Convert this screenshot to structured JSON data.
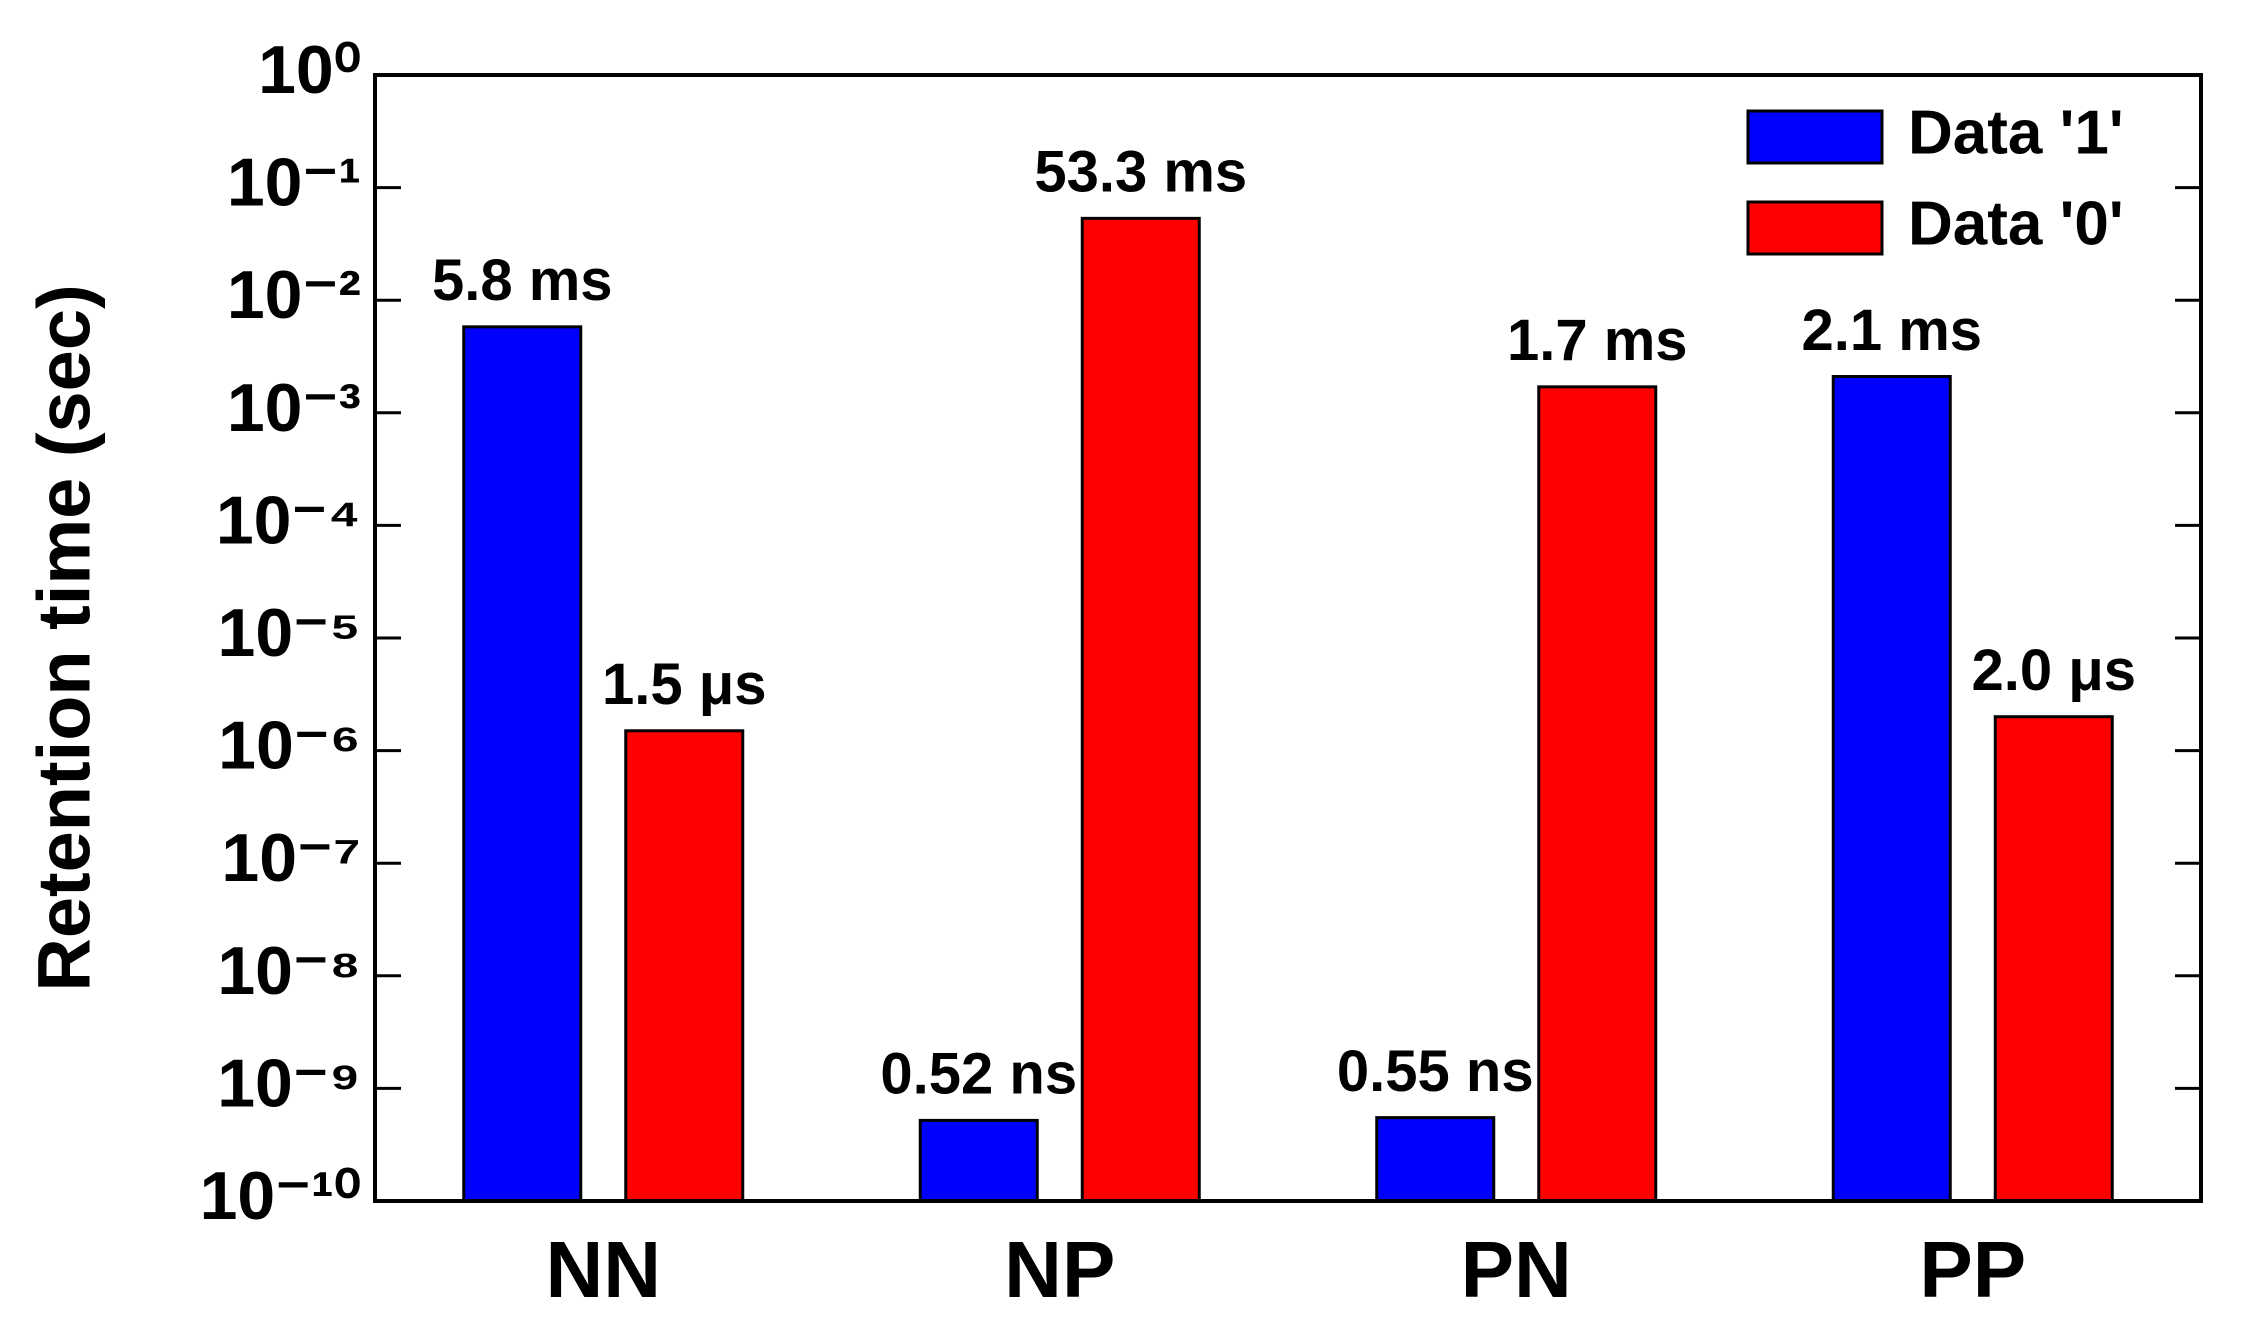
{
  "chart_data": {
    "type": "bar",
    "y_label": "Retention time (sec)",
    "categories": [
      "NN",
      "NP",
      "PN",
      "PP"
    ],
    "series": [
      {
        "name": "Data '1'",
        "color": "#0000ff",
        "values": [
          0.0058,
          5.2e-10,
          5.5e-10,
          0.0021
        ],
        "value_labels": [
          "5.8 ms",
          "0.52 ns",
          "0.55 ns",
          "2.1 ms"
        ]
      },
      {
        "name": "Data '0'",
        "color": "#ff0000",
        "values": [
          1.5e-06,
          0.0533,
          0.0017,
          2e-06
        ],
        "value_labels": [
          "1.5 μs",
          "53.3 ms",
          "1.7 ms",
          "2.0 μs"
        ]
      }
    ],
    "yscale": "log",
    "ylim": [
      1e-10,
      1
    ],
    "yticks": [
      {
        "value": 1e-10,
        "label": "10⁻¹⁰"
      },
      {
        "value": 1e-09,
        "label": "10⁻⁹"
      },
      {
        "value": 1e-08,
        "label": "10⁻⁸"
      },
      {
        "value": 1e-07,
        "label": "10⁻⁷"
      },
      {
        "value": 1e-06,
        "label": "10⁻⁶"
      },
      {
        "value": 1e-05,
        "label": "10⁻⁵"
      },
      {
        "value": 0.0001,
        "label": "10⁻⁴"
      },
      {
        "value": 0.001,
        "label": "10⁻³"
      },
      {
        "value": 0.01,
        "label": "10⁻²"
      },
      {
        "value": 0.1,
        "label": "10⁻¹"
      },
      {
        "value": 1,
        "label": "10⁰"
      }
    ],
    "legend": "upper right",
    "grid": false
  }
}
